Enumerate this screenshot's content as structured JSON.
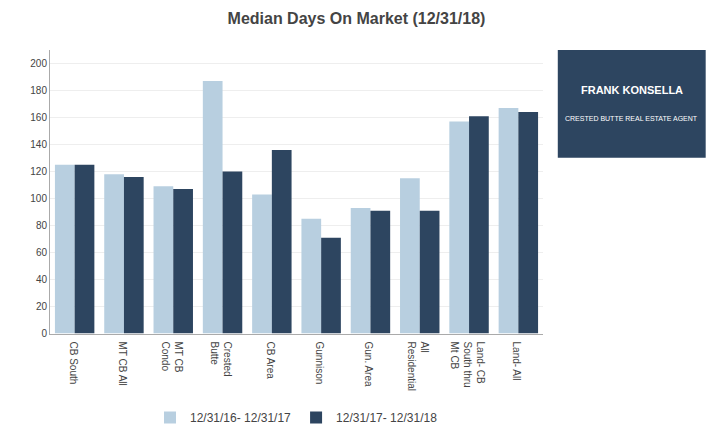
{
  "chart_data": {
    "type": "bar",
    "title": "Median Days On Market (12/31/18)",
    "categories": [
      "CB South",
      "MT CB All",
      "MT CB\nCondo",
      "Crested\nButte",
      "CB Area",
      "Gunnison",
      "Gun. Area",
      "All\nResidential",
      "Land- CB\nSouth thru\nMt CB",
      "Land- All"
    ],
    "series": [
      {
        "name": "12/31/16- 12/31/17",
        "color": "#b8cfe0",
        "values": [
          125,
          118,
          109,
          187,
          103,
          85,
          93,
          115,
          157,
          167
        ]
      },
      {
        "name": "12/31/17- 12/31/18",
        "color": "#2d4560",
        "values": [
          125,
          116,
          107,
          120,
          136,
          71,
          91,
          91,
          161,
          164
        ]
      }
    ],
    "ylim": [
      0,
      210
    ],
    "yticks": [
      0,
      20,
      40,
      60,
      80,
      100,
      120,
      140,
      160,
      180,
      200
    ],
    "grid": true,
    "legend": "bottom",
    "annotations": [
      "FRANK KONSELLA",
      "CRESTED BUTTE REAL ESTATE AGENT"
    ]
  }
}
